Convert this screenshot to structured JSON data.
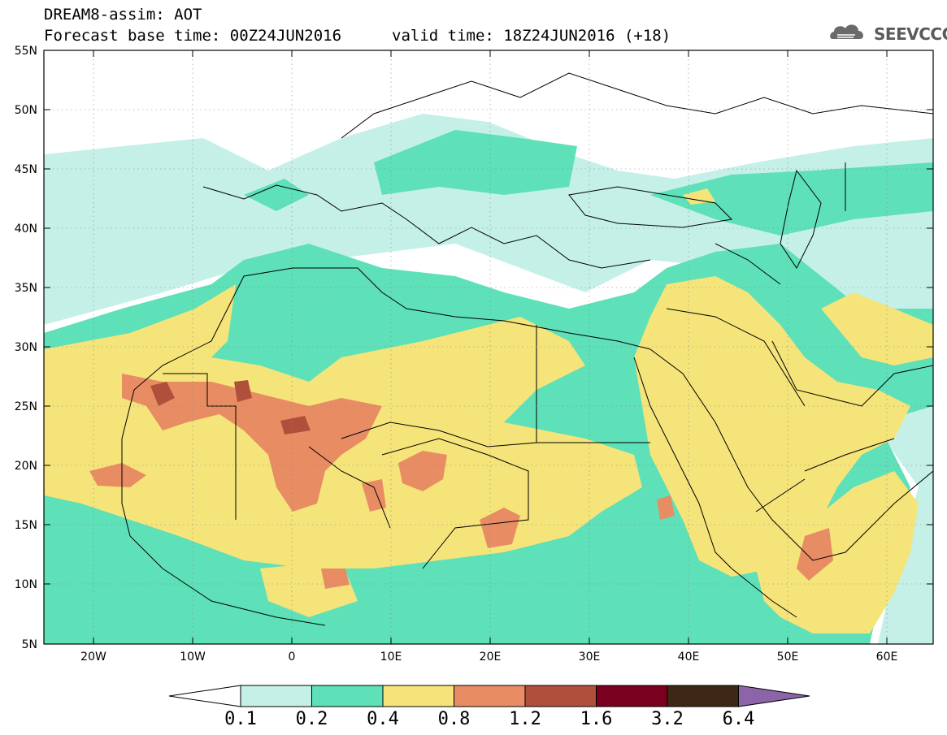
{
  "header": {
    "title": "DREAM8-assim: AOT",
    "base_time": "Forecast base time: 00Z24JUN2016",
    "valid_time": "valid time: 18Z24JUN2016 (+18)"
  },
  "logo": {
    "text": "SEEVCCC",
    "icon": "cloud-icon"
  },
  "map": {
    "lat_labels": [
      "55N",
      "50N",
      "45N",
      "40N",
      "35N",
      "30N",
      "25N",
      "20N",
      "15N",
      "10N",
      "5N"
    ],
    "lon_labels": [
      "20W",
      "10W",
      "0",
      "10E",
      "20E",
      "30E",
      "40E",
      "50E",
      "60E"
    ]
  },
  "colorbar": {
    "labels": [
      "0.1",
      "0.2",
      "0.4",
      "0.8",
      "1.2",
      "1.6",
      "3.2",
      "6.4"
    ],
    "colors": [
      "#ffffff",
      "#c4f0e8",
      "#5ee0b8",
      "#f5e47a",
      "#e88c64",
      "#b0503c",
      "#7a0020",
      "#3c2814",
      "#8c64a8"
    ]
  },
  "palette": {
    "light": "#c4f0e8",
    "teal": "#5ee0b8",
    "yellow": "#f5e47a",
    "orange": "#e88c64",
    "red": "#b0503c"
  }
}
